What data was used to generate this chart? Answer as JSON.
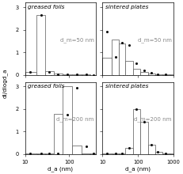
{
  "title_fontsize": 5.2,
  "label_fontsize": 5.2,
  "tick_fontsize": 4.8,
  "annotation_fontsize": 5.0,
  "top_left": {
    "title": "greased foils",
    "label": "d_m=50 nm",
    "xlim": [
      10,
      400
    ],
    "ylim": [
      0,
      3.2
    ],
    "yticks": [
      0,
      1,
      2,
      3
    ],
    "bins": [
      10,
      18,
      28,
      44,
      72,
      115,
      190,
      300,
      400
    ],
    "bar_heights": [
      0.12,
      2.65,
      0.16,
      0.04,
      0.015,
      0.01,
      0.005,
      0.002
    ],
    "points_x": [
      13,
      23,
      35,
      56,
      90,
      148,
      238,
      350
    ],
    "points_y": [
      0.12,
      2.65,
      0.14,
      0.03,
      0.01,
      0.007,
      0.003,
      0.001
    ]
  },
  "top_right": {
    "title": "sintered plates",
    "label": "d_m=50 nm",
    "xlim": [
      10,
      1000
    ],
    "ylim": [
      0,
      3.2
    ],
    "yticks": [
      0,
      1,
      2,
      3
    ],
    "bins": [
      10,
      18,
      28,
      44,
      72,
      115,
      190,
      300,
      480,
      760,
      1000
    ],
    "bar_heights": [
      0.75,
      1.55,
      1.38,
      0.6,
      0.27,
      0.11,
      0.05,
      0.02,
      0.01,
      0.005
    ],
    "points_x": [
      13,
      23,
      35,
      56,
      90,
      148,
      238,
      350,
      600
    ],
    "points_y": [
      1.92,
      0.8,
      1.42,
      1.32,
      0.52,
      0.2,
      0.08,
      0.03,
      0.01
    ]
  },
  "bottom_left": {
    "title": "greased foils",
    "label": "d_m=200 nm",
    "xlim": [
      10,
      400
    ],
    "ylim": [
      0,
      3.2
    ],
    "yticks": [
      0,
      1,
      2,
      3
    ],
    "bins": [
      10,
      18,
      28,
      44,
      72,
      115,
      190,
      300,
      400
    ],
    "bar_heights": [
      0.01,
      0.01,
      0.01,
      1.78,
      3.0,
      0.36,
      0.04,
      0.01
    ],
    "points_x": [
      13,
      23,
      35,
      56,
      90,
      148,
      238,
      350
    ],
    "points_y": [
      0.01,
      0.01,
      0.01,
      0.01,
      1.75,
      2.95,
      0.35,
      0.02
    ]
  },
  "bottom_right": {
    "title": "sintered plates",
    "label": "d_m=200 nm",
    "xlim": [
      10,
      1000
    ],
    "ylim": [
      0,
      3.2
    ],
    "yticks": [
      0,
      1,
      2,
      3
    ],
    "bins": [
      10,
      18,
      28,
      44,
      72,
      115,
      190,
      300,
      480,
      760,
      1000
    ],
    "bar_heights": [
      0.01,
      0.01,
      0.04,
      0.28,
      1.98,
      1.42,
      0.42,
      0.11,
      0.03,
      0.01
    ],
    "points_x": [
      13,
      23,
      35,
      56,
      90,
      148,
      238,
      350,
      600
    ],
    "points_y": [
      0.01,
      0.01,
      0.04,
      0.27,
      2.0,
      1.42,
      0.4,
      0.09,
      0.02
    ]
  },
  "bar_facecolor": "white",
  "bar_edgecolor": "#555555",
  "line_color": "#555555",
  "point_color": "#111111",
  "xlabel_left": "d_a (nm)",
  "xlabel_right": "d_a (nm)",
  "ylabel": "dI/dlogd_a",
  "fig_bg": "white"
}
